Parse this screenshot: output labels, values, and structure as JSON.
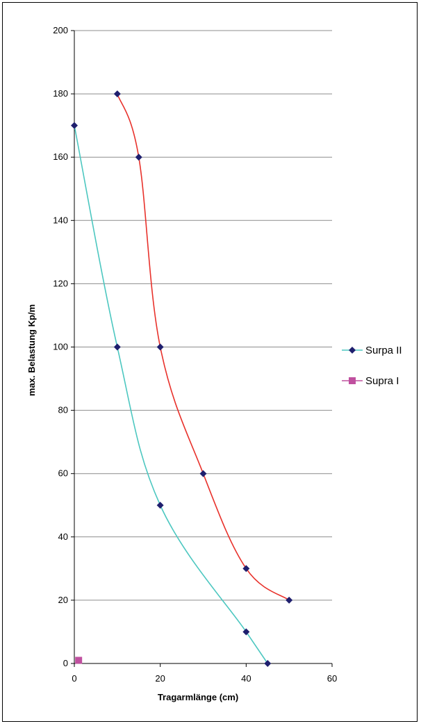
{
  "chart_data": {
    "type": "line",
    "title": "",
    "xlabel": "Tragarmlänge (cm)",
    "ylabel": "max. Belastung Kp/m",
    "xlim": [
      0,
      60
    ],
    "ylim": [
      0,
      200
    ],
    "x_ticks": [
      "0",
      "20",
      "40",
      "60"
    ],
    "y_ticks": [
      "0",
      "20",
      "40",
      "60",
      "80",
      "100",
      "120",
      "140",
      "160",
      "180",
      "200"
    ],
    "grid": "horizontal",
    "legend": "right",
    "series": [
      {
        "name": "Surpa II",
        "color": "#4cc7c0",
        "marker": "diamond",
        "marker_color": "#1f1f6e",
        "points": [
          [
            0,
            170
          ],
          [
            10,
            100
          ],
          [
            20,
            50
          ],
          [
            40,
            10
          ],
          [
            45,
            0
          ]
        ]
      },
      {
        "name": "",
        "color": "#e8312b",
        "marker": "diamond",
        "marker_color": "#1f1f6e",
        "points": [
          [
            10,
            180
          ],
          [
            15,
            160
          ],
          [
            20,
            100
          ],
          [
            30,
            60
          ],
          [
            40,
            30
          ],
          [
            50,
            20
          ]
        ]
      },
      {
        "name": "Supra I",
        "color": "#c0509f",
        "marker": "square",
        "marker_color": "#c0509f",
        "points": [
          [
            1,
            1
          ]
        ]
      }
    ]
  }
}
